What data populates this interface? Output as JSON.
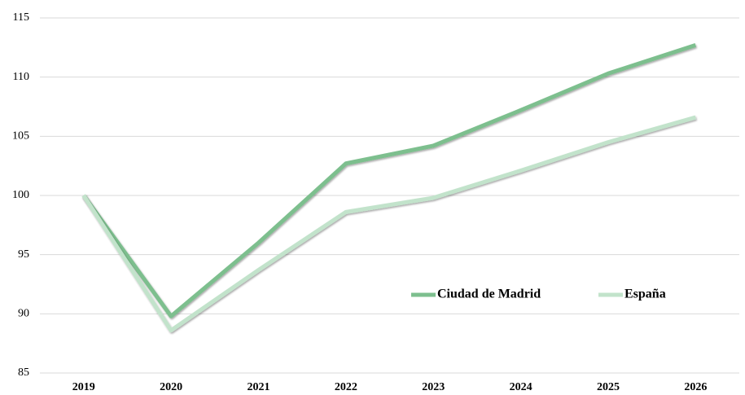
{
  "chart_data": {
    "type": "line",
    "categories": [
      "2019",
      "2020",
      "2021",
      "2022",
      "2023",
      "2024",
      "2025",
      "2026"
    ],
    "series": [
      {
        "name": "Ciudad de Madrid",
        "color": "#7dbf8e",
        "values": [
          100,
          89.8,
          96,
          102.7,
          104.2,
          107.2,
          110.3,
          112.7
        ]
      },
      {
        "name": "España",
        "color": "#c2e3cb",
        "values": [
          100,
          88.6,
          93.7,
          98.6,
          99.8,
          102.1,
          104.5,
          106.6
        ]
      }
    ],
    "ylim": [
      85,
      115
    ],
    "yticks": [
      85,
      90,
      95,
      100,
      105,
      110,
      115
    ],
    "grid": true
  }
}
